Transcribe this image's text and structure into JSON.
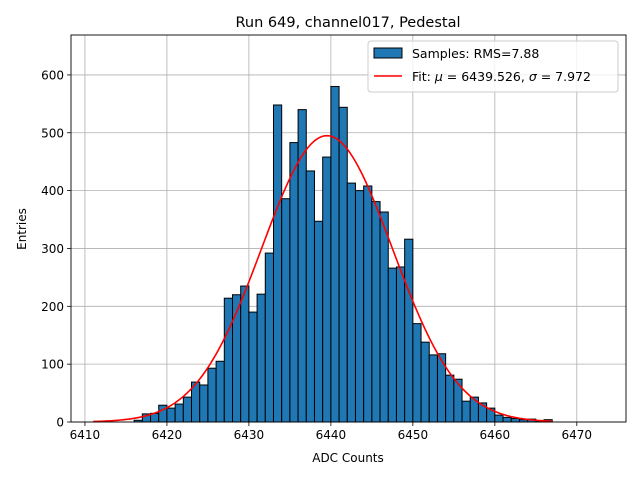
{
  "chart_data": {
    "type": "bar",
    "title": "Run 649, channel017, Pedestal",
    "xlabel": "ADC Counts",
    "ylabel": "Entries",
    "xlim": [
      6408.3,
      6476
    ],
    "ylim": [
      0,
      669
    ],
    "grid": true,
    "legend_position": "top-right",
    "xticks": [
      6410,
      6420,
      6430,
      6440,
      6450,
      6460,
      6470
    ],
    "yticks": [
      0,
      100,
      200,
      300,
      400,
      500,
      600
    ],
    "bin_width": 1,
    "bins": [
      6416,
      6417,
      6418,
      6419,
      6420,
      6421,
      6422,
      6423,
      6424,
      6425,
      6426,
      6427,
      6428,
      6429,
      6430,
      6431,
      6432,
      6433,
      6434,
      6435,
      6436,
      6437,
      6438,
      6439,
      6440,
      6441,
      6442,
      6443,
      6444,
      6445,
      6446,
      6447,
      6448,
      6449,
      6450,
      6451,
      6452,
      6453,
      6454,
      6455,
      6456,
      6457,
      6458,
      6459,
      6460,
      6461,
      6462,
      6463,
      6464,
      6465,
      6466
    ],
    "values": [
      3,
      14,
      15,
      29,
      24,
      31,
      43,
      69,
      64,
      93,
      105,
      214,
      220,
      235,
      190,
      221,
      292,
      548,
      386,
      483,
      540,
      434,
      347,
      458,
      580,
      544,
      413,
      400,
      408,
      381,
      363,
      266,
      268,
      316,
      170,
      138,
      116,
      118,
      81,
      74,
      36,
      43,
      33,
      24,
      12,
      8,
      6,
      4,
      5,
      2,
      4
    ],
    "series": [
      {
        "name": "Samples: RMS=7.88",
        "type": "histogram",
        "color": "#1f77b4"
      },
      {
        "name": "Fit: μ = 6439.526, σ = 7.972",
        "type": "line",
        "color": "#ff0000",
        "mu": 6439.526,
        "sigma": 7.972,
        "amplitude": 495,
        "x_range": [
          6411,
          6467
        ]
      }
    ],
    "legend": {
      "hist_label": "Samples: RMS=7.88",
      "fit_label_prefix": "Fit: ",
      "fit_mu_sym": "μ",
      "fit_mu_val": " = 6439.526, ",
      "fit_sigma_sym": "σ",
      "fit_sigma_val": " = 7.972"
    }
  }
}
